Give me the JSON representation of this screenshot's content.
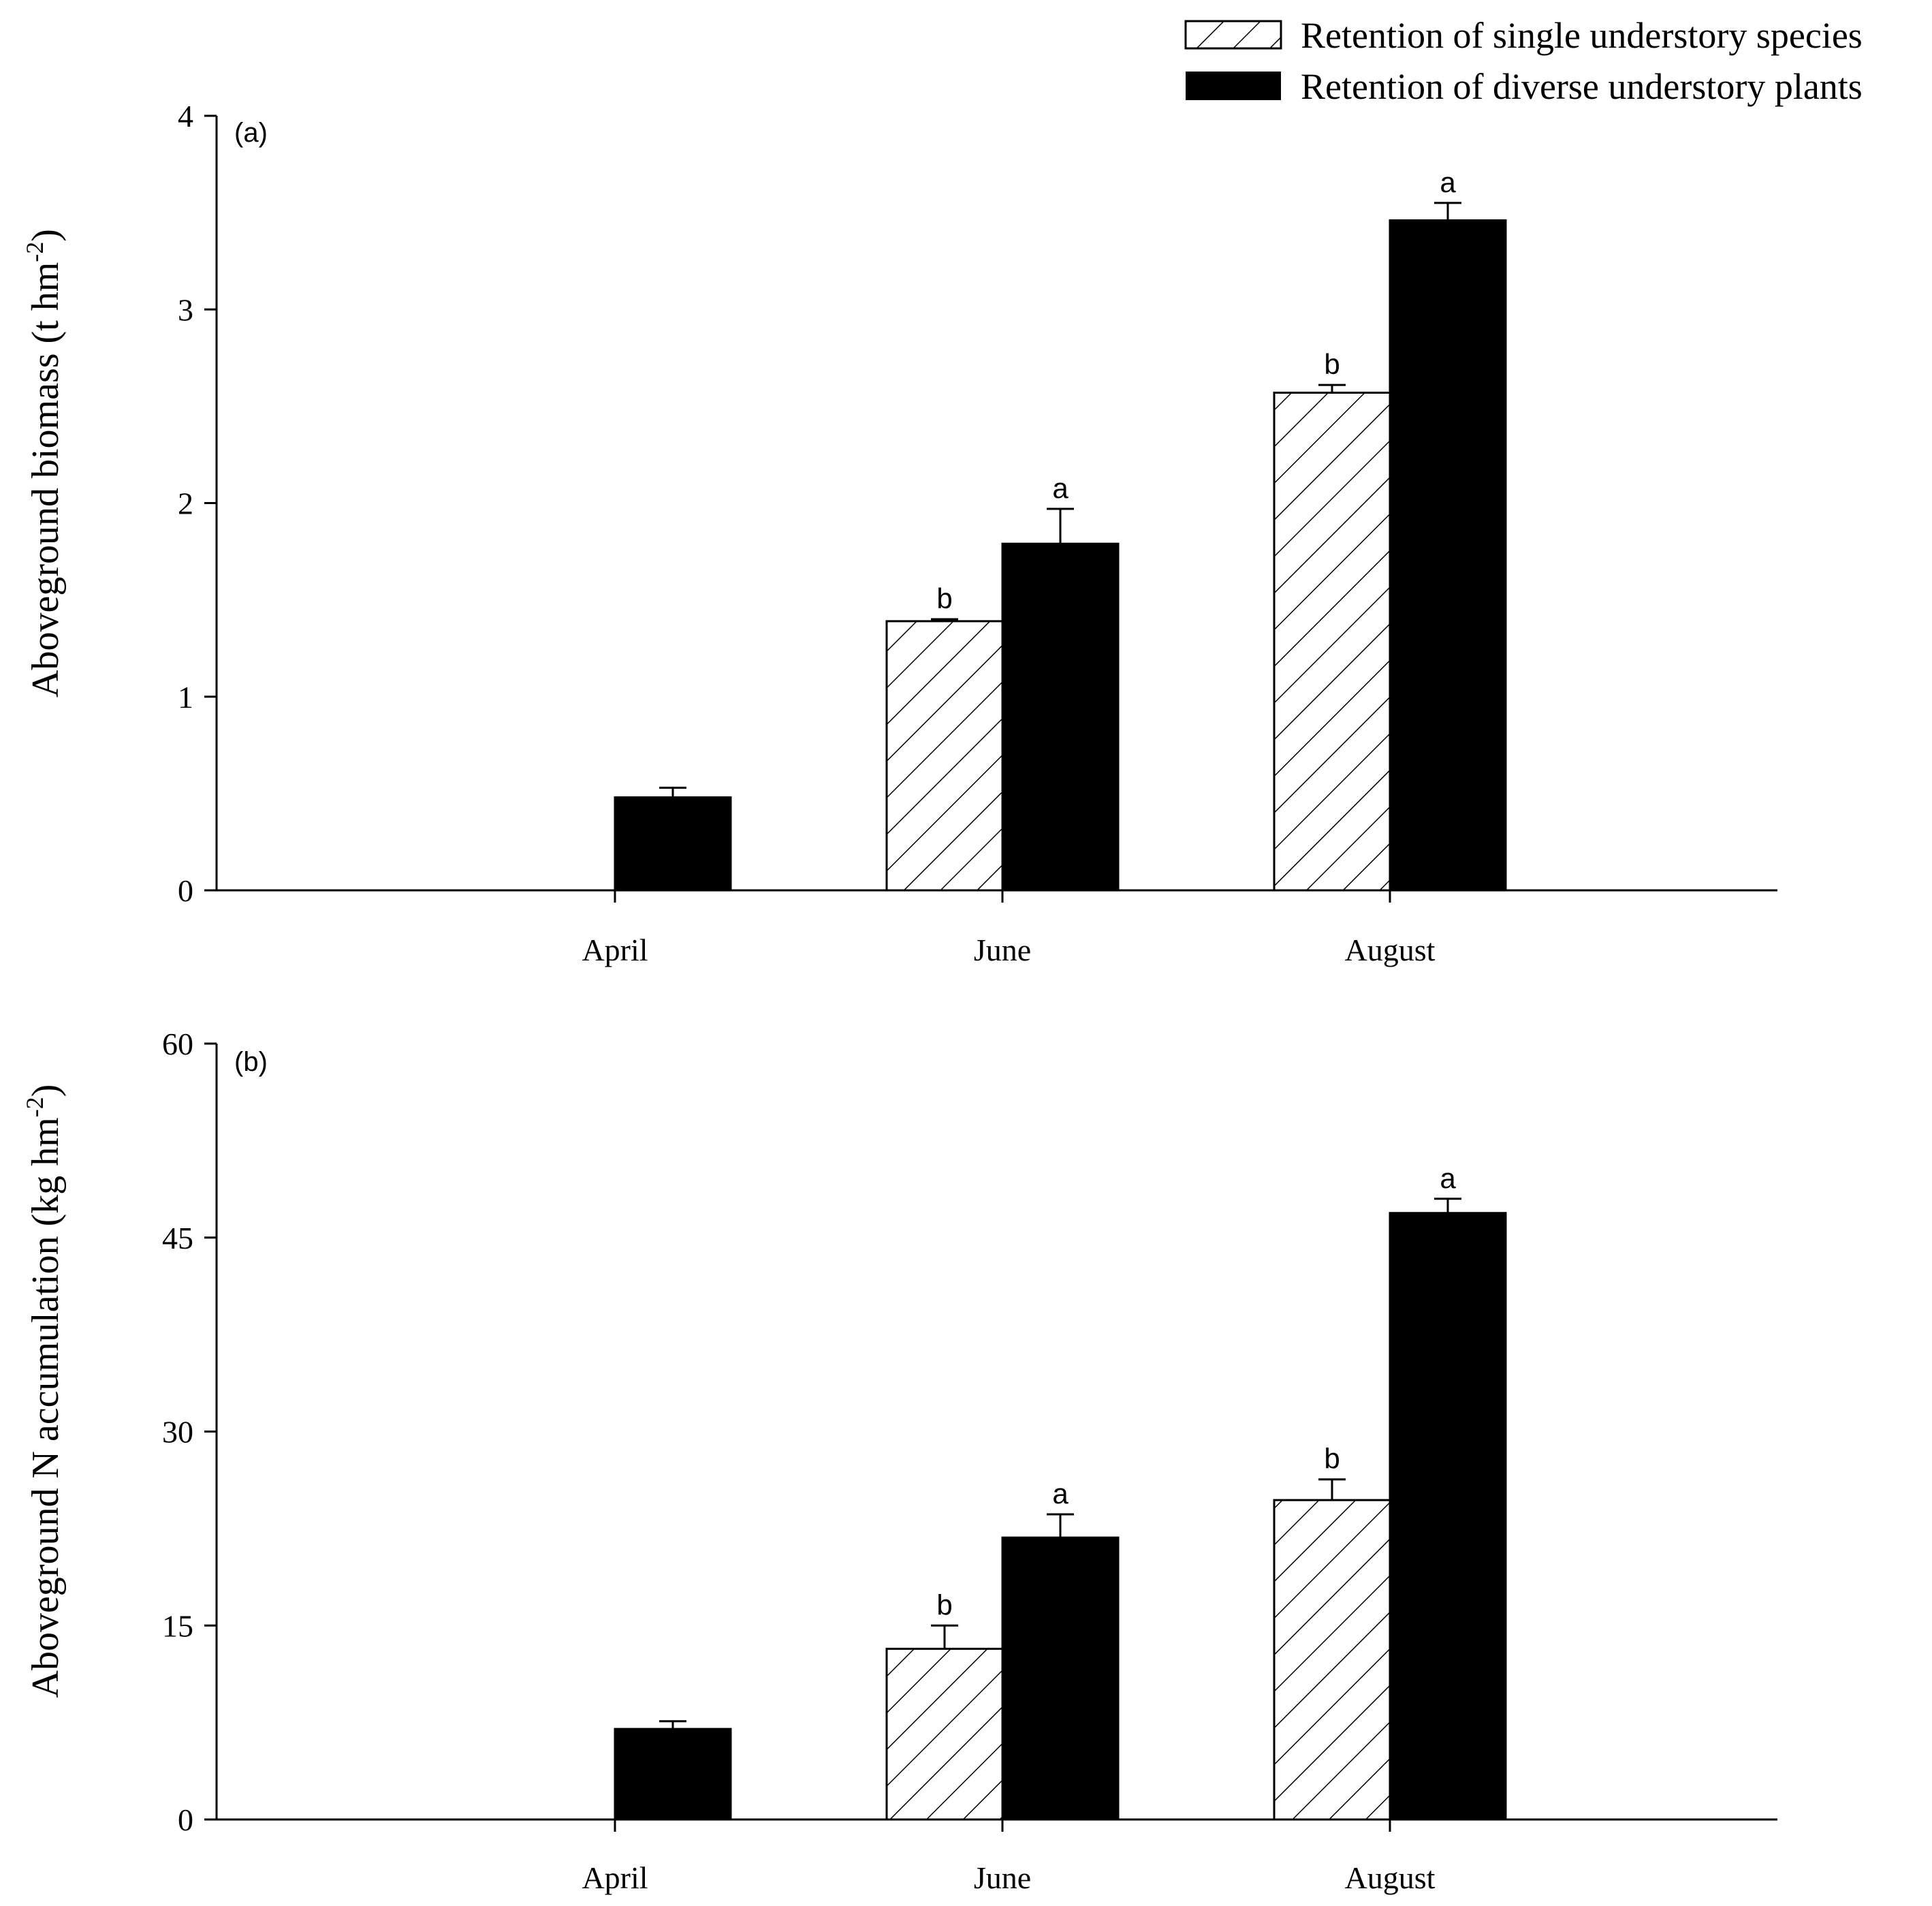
{
  "legend": [
    {
      "label": "Retention of single understory species",
      "pattern": "hatched"
    },
    {
      "label": "Retention of diverse understory plants",
      "pattern": "solid"
    }
  ],
  "chart_data": [
    {
      "type": "bar",
      "panel_label": "(a)",
      "categories": [
        "April",
        "June",
        "August"
      ],
      "ylabel": "Aboveground biomass (t hm",
      "ylabel_sup": "-2",
      "ylabel_close": ")",
      "ylim": [
        0,
        4
      ],
      "yticks": [
        0,
        1,
        2,
        3,
        4
      ],
      "series": [
        {
          "name": "Retention of single understory species",
          "values": [
            null,
            1.39,
            2.57
          ],
          "errors": [
            null,
            0.01,
            0.04
          ],
          "sig": [
            null,
            "b",
            "b"
          ]
        },
        {
          "name": "Retention of diverse understory plants",
          "values": [
            0.48,
            1.79,
            3.46
          ],
          "errors": [
            0.05,
            0.18,
            0.09
          ],
          "sig": [
            null,
            "a",
            "a"
          ]
        }
      ]
    },
    {
      "type": "bar",
      "panel_label": "(b)",
      "categories": [
        "April",
        "June",
        "August"
      ],
      "ylabel": "Aboveground N accumulation (kg hm",
      "ylabel_sup": "-2",
      "ylabel_close": ")",
      "ylim": [
        0,
        60
      ],
      "yticks": [
        0,
        15,
        30,
        45,
        60
      ],
      "series": [
        {
          "name": "Retention of single understory species",
          "values": [
            null,
            13.2,
            24.7
          ],
          "errors": [
            null,
            1.8,
            1.6
          ],
          "sig": [
            null,
            "b",
            "b"
          ]
        },
        {
          "name": "Retention of diverse understory plants",
          "values": [
            7.0,
            21.8,
            46.9
          ],
          "errors": [
            0.6,
            1.8,
            1.1
          ],
          "sig": [
            null,
            "a",
            "a"
          ]
        }
      ]
    }
  ],
  "colors": {
    "axis": "#000000",
    "solid_bar": "#000000",
    "hatch_bar_fill": "#ffffff"
  }
}
